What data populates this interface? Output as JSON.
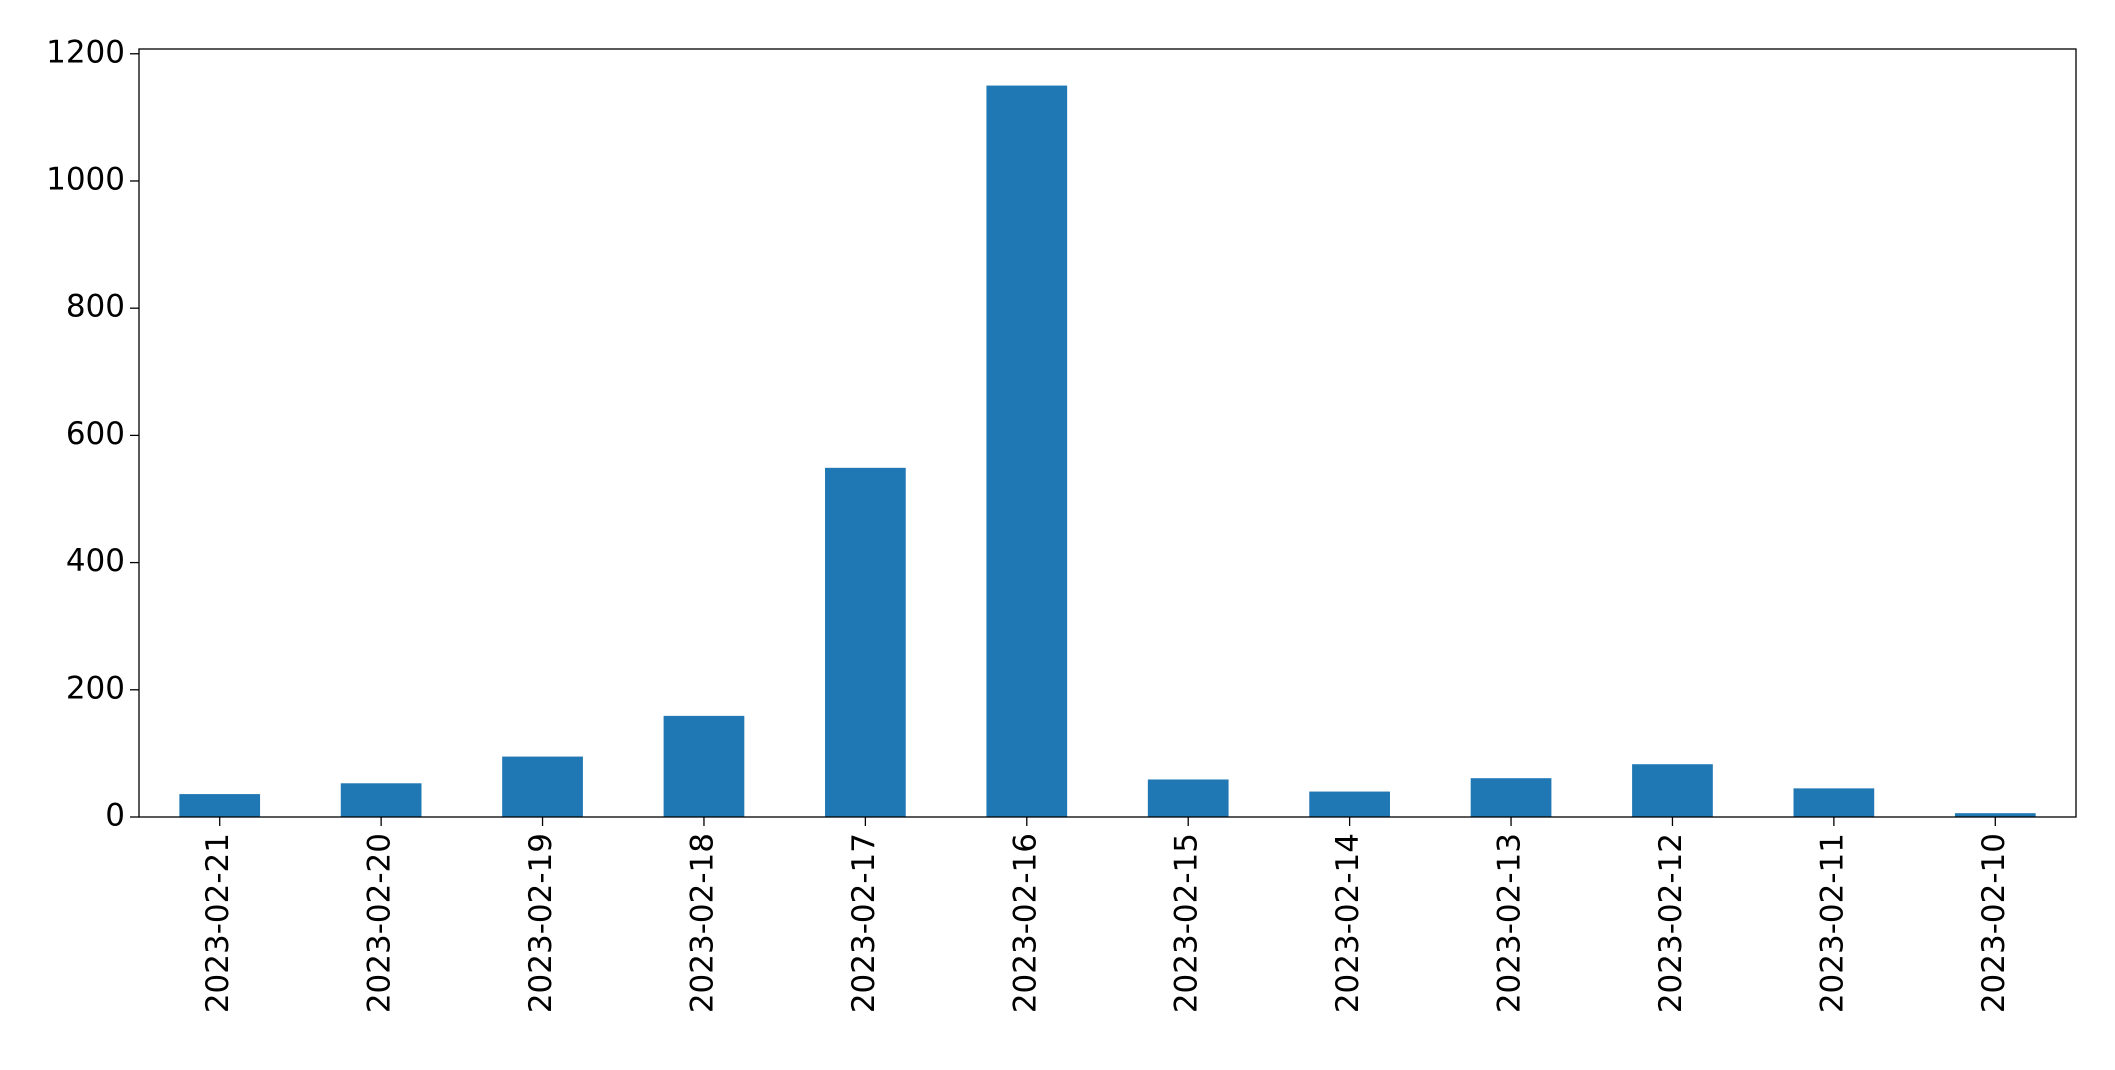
{
  "chart_data": {
    "type": "bar",
    "categories": [
      "2023-02-21",
      "2023-02-20",
      "2023-02-19",
      "2023-02-18",
      "2023-02-17",
      "2023-02-16",
      "2023-02-15",
      "2023-02-14",
      "2023-02-13",
      "2023-02-12",
      "2023-02-11",
      "2023-02-10"
    ],
    "values": [
      36,
      53,
      95,
      159,
      549,
      1150,
      59,
      40,
      61,
      83,
      45,
      6
    ],
    "color": "#1f77b4",
    "ylim": [
      0,
      1207.5
    ],
    "yticks": [
      0,
      200,
      400,
      600,
      800,
      1000,
      1200
    ],
    "grid": false
  }
}
